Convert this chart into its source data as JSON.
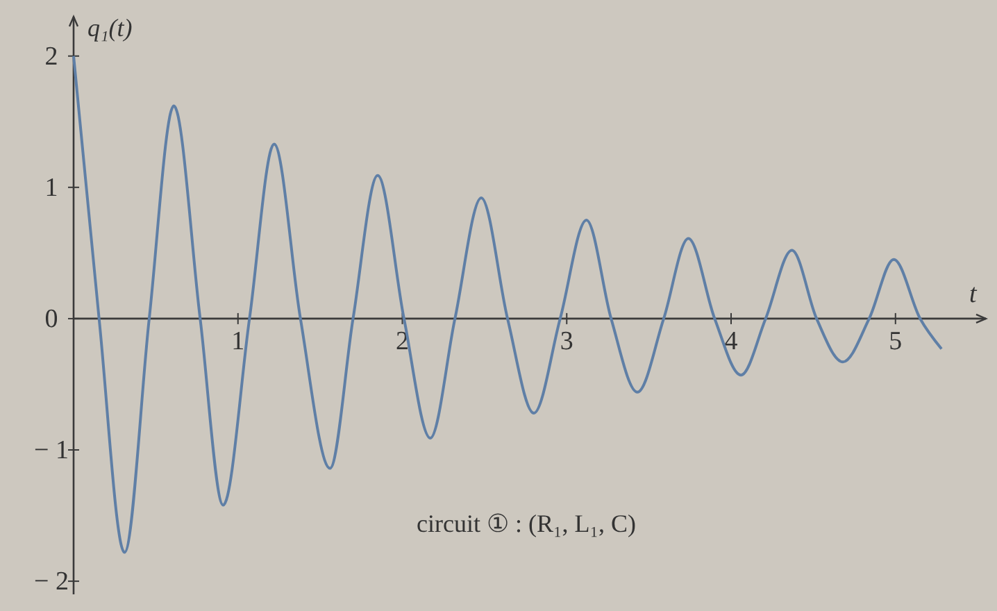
{
  "chart_data": {
    "type": "line",
    "xlabel": "t",
    "ylabel": "q₁(t)",
    "annotations": [
      "circuit ① : (R₁, L₁, C)"
    ],
    "xlim": [
      0,
      5.55
    ],
    "ylim": [
      -2.1,
      2.3
    ],
    "xticks": [
      1,
      2,
      3,
      4,
      5
    ],
    "yticks": [
      {
        "value": -2,
        "label": "− 2"
      },
      {
        "value": -1,
        "label": "− 1"
      },
      0,
      1,
      2
    ],
    "grid": false,
    "marker": "none",
    "line_style": "solid",
    "series": [
      {
        "color": "#5f7fa6",
        "x": [
          0,
          0.155,
          0.31,
          0.46,
          0.61,
          0.77,
          0.91,
          1.07,
          1.22,
          1.38,
          1.56,
          1.7,
          1.85,
          2.01,
          2.17,
          2.32,
          2.48,
          2.64,
          2.8,
          2.96,
          3.12,
          3.27,
          3.43,
          3.59,
          3.74,
          3.9,
          4.06,
          4.21,
          4.37,
          4.52,
          4.68,
          4.84,
          4.99,
          5.15,
          5.28
        ],
        "values": [
          2,
          0,
          -1.78,
          0,
          1.62,
          0,
          -1.42,
          0,
          1.33,
          0,
          -1.14,
          0,
          1.09,
          0,
          -0.91,
          0,
          0.92,
          0,
          -0.72,
          0,
          0.75,
          0,
          -0.56,
          0,
          0.61,
          0,
          -0.43,
          0,
          0.52,
          0,
          -0.33,
          0,
          0.45,
          0,
          -0.23
        ]
      }
    ]
  }
}
